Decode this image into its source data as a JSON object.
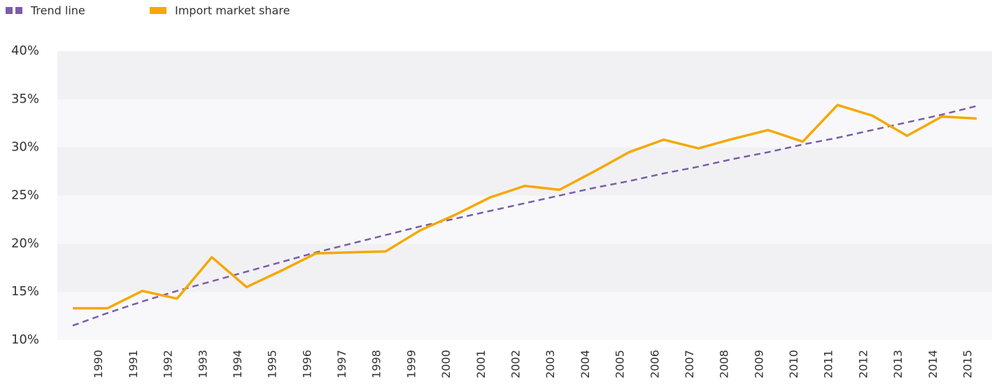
{
  "chart_data": {
    "type": "line",
    "categories": [
      null,
      "1990",
      "1991",
      "1992",
      "1993",
      "1994",
      "1995",
      "1996",
      "1997",
      "1998",
      "1999",
      "2000",
      "2001",
      "2002",
      "2003",
      "2004",
      "2005",
      "2006",
      "2007",
      "2008",
      "2009",
      "2010",
      "2011",
      "2012",
      "2013",
      "2014",
      "2015"
    ],
    "series": [
      {
        "name": "Trend line",
        "color": "#7b5ea7",
        "dashed": true,
        "values": [
          11.5,
          12.8,
          14.0,
          15.1,
          16.1,
          17.1,
          18.1,
          19.1,
          20.0,
          20.9,
          21.8,
          22.6,
          23.4,
          24.2,
          25.0,
          25.8,
          26.5,
          27.3,
          28.0,
          28.8,
          29.5,
          30.3,
          31.0,
          31.8,
          32.6,
          33.4,
          34.3
        ]
      },
      {
        "name": "Import market share",
        "color": "#f5a800",
        "dashed": false,
        "values": [
          13.3,
          13.3,
          15.1,
          14.3,
          18.6,
          15.5,
          17.2,
          19.0,
          19.1,
          19.2,
          21.4,
          23.0,
          24.8,
          26.0,
          25.6,
          27.5,
          29.5,
          30.8,
          29.9,
          30.9,
          31.8,
          30.6,
          34.4,
          33.3,
          31.2,
          33.2,
          33.0
        ]
      }
    ],
    "ylim": [
      10,
      40
    ],
    "yticks": [
      {
        "value": 10,
        "label": "10%"
      },
      {
        "value": 15,
        "label": "15%"
      },
      {
        "value": 20,
        "label": "20%"
      },
      {
        "value": 25,
        "label": "25%"
      },
      {
        "value": 30,
        "label": "30%"
      },
      {
        "value": 35,
        "label": "35%"
      },
      {
        "value": 40,
        "label": "40%"
      }
    ],
    "legend": "top-left"
  }
}
